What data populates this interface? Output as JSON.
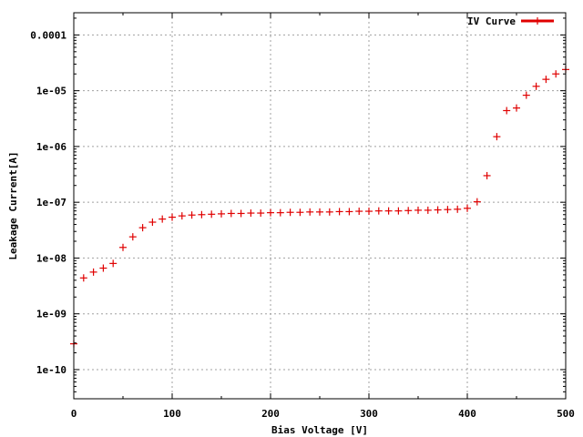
{
  "chart_data": {
    "type": "scatter",
    "title": "",
    "xlabel": "Bias Voltage [V]",
    "ylabel": "Leakage Current[A]",
    "xlim": [
      0,
      500
    ],
    "ylim": [
      3e-11,
      0.00025
    ],
    "yscale": "log",
    "grid": true,
    "legend_position": "top-right",
    "x_ticks": [
      {
        "value": 0,
        "label": "0"
      },
      {
        "value": 100,
        "label": "100"
      },
      {
        "value": 200,
        "label": "200"
      },
      {
        "value": 300,
        "label": "300"
      },
      {
        "value": 400,
        "label": "400"
      },
      {
        "value": 500,
        "label": "500"
      }
    ],
    "y_ticks": [
      {
        "value": 1e-10,
        "label": "1e-10"
      },
      {
        "value": 1e-09,
        "label": "1e-09"
      },
      {
        "value": 1e-08,
        "label": "1e-08"
      },
      {
        "value": 1e-07,
        "label": "1e-07"
      },
      {
        "value": 1e-06,
        "label": "1e-06"
      },
      {
        "value": 1e-05,
        "label": "1e-05"
      },
      {
        "value": 0.0001,
        "label": "0.0001"
      }
    ],
    "series": [
      {
        "name": "IV Curve",
        "color": "#e00000",
        "marker": "plus",
        "x": [
          0,
          10,
          20,
          30,
          40,
          50,
          60,
          70,
          80,
          90,
          100,
          110,
          120,
          130,
          140,
          150,
          160,
          170,
          180,
          190,
          200,
          210,
          220,
          230,
          240,
          250,
          260,
          270,
          280,
          290,
          300,
          310,
          320,
          330,
          340,
          350,
          360,
          370,
          380,
          390,
          400,
          410,
          420,
          430,
          440,
          450,
          460,
          470,
          480,
          490,
          500
        ],
        "y": [
          2.9e-10,
          4.4e-09,
          5.6e-09,
          6.6e-09,
          8e-09,
          1.55e-08,
          2.4e-08,
          3.5e-08,
          4.4e-08,
          5e-08,
          5.4e-08,
          5.7e-08,
          5.9e-08,
          6e-08,
          6.1e-08,
          6.2e-08,
          6.3e-08,
          6.3e-08,
          6.4e-08,
          6.4e-08,
          6.5e-08,
          6.5e-08,
          6.6e-08,
          6.6e-08,
          6.7e-08,
          6.7e-08,
          6.7e-08,
          6.8e-08,
          6.8e-08,
          6.9e-08,
          6.9e-08,
          7e-08,
          7e-08,
          7e-08,
          7.1e-08,
          7.2e-08,
          7.2e-08,
          7.3e-08,
          7.4e-08,
          7.5e-08,
          7.8e-08,
          1.02e-07,
          3e-07,
          1.5e-06,
          4.4e-06,
          4.9e-06,
          8.3e-06,
          1.2e-05,
          1.6e-05,
          2e-05,
          2.4e-05
        ]
      }
    ]
  }
}
